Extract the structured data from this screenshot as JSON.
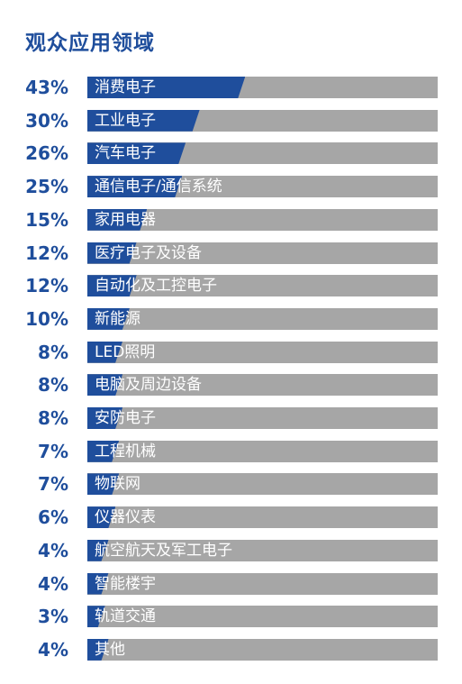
{
  "title": "观众应用领域",
  "colors": {
    "accent": "#1f4e9c",
    "track": "#a6a6a6",
    "label": "#ffffff"
  },
  "chart_data": {
    "type": "bar",
    "orientation": "horizontal",
    "title": "观众应用领域",
    "xlim": [
      0,
      100
    ],
    "categories": [
      "消费电子",
      "工业电子",
      "汽车电子",
      "通信电子/通信系统",
      "家用电器",
      "医疗电子及设备",
      "自动化及工控电子",
      "新能源",
      "LED照明",
      "电脑及周边设备",
      "安防电子",
      "工程机械",
      "物联网",
      "仪器仪表",
      "航空航天及军工电子",
      "智能楼宇",
      "轨道交通",
      "其他"
    ],
    "values": [
      43,
      30,
      26,
      25,
      15,
      12,
      12,
      10,
      8,
      8,
      8,
      7,
      7,
      6,
      4,
      4,
      3,
      4
    ],
    "value_labels": [
      "43%",
      "30%",
      "26%",
      "25%",
      "15%",
      "12%",
      "12%",
      "10%",
      "8%",
      "8%",
      "8%",
      "7%",
      "7%",
      "6%",
      "4%",
      "4%",
      "3%",
      "4%"
    ]
  }
}
